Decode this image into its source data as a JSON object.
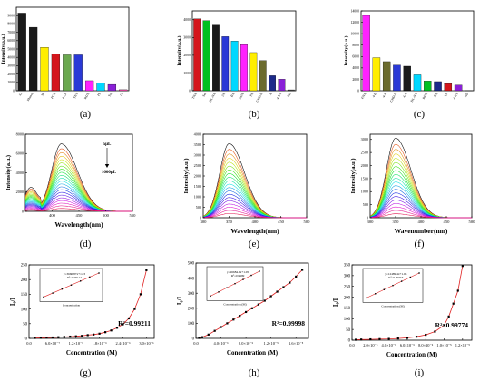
{
  "chart_data": [
    {
      "panel": "a",
      "type": "bar",
      "categories": [
        "Al",
        "Phenol",
        "3F",
        "PCA",
        "4-CP",
        "TNT",
        "RDX",
        "Ph",
        "Tol",
        "Cl"
      ],
      "values": [
        9300,
        7600,
        5200,
        4400,
        4300,
        4300,
        1200,
        950,
        750,
        120
      ],
      "colors": [
        "#1a1a1a",
        "#1a1a1a",
        "#ffee00",
        "#d4161c",
        "#6aa84f",
        "#2a39d6",
        "#ff22ff",
        "#00d8ff",
        "#8a20d8",
        "#ff4fb3"
      ],
      "ylabel": "Intensity(a.u.)",
      "ylim": [
        0,
        10000
      ],
      "ticks": [
        "0",
        "1000",
        "2000",
        "3000",
        "4000",
        "5000",
        "6000",
        "7000",
        "8000",
        "9000"
      ]
    },
    {
      "panel": "b",
      "type": "bar",
      "categories": [
        "TNA",
        "Ser",
        "DL-NA",
        "2A",
        "BA",
        "RDX",
        "PA",
        "CHD-N",
        "A",
        "4-NT",
        "NB"
      ],
      "values": [
        4050,
        3950,
        3700,
        3050,
        2800,
        2600,
        2150,
        1700,
        850,
        650,
        50
      ],
      "colors": [
        "#d4161c",
        "#00c020",
        "#1a1a1a",
        "#2a39d6",
        "#00d8ff",
        "#ff22ff",
        "#ffee00",
        "#6b6b2e",
        "#1c2a8a",
        "#8a20d8",
        "#4a4a4a"
      ],
      "ylabel": "Intensity(a.u.)",
      "ylim": [
        0,
        4500
      ],
      "ticks": [
        "0",
        "1000",
        "2000",
        "3000",
        "4000"
      ]
    },
    {
      "panel": "c",
      "type": "bar",
      "categories": [
        "ENA",
        "4-B",
        "4-A",
        "CHD-N",
        "4-A",
        "DL-NA",
        "RDX",
        "BA",
        "TP",
        "4-NT",
        "NB"
      ],
      "values": [
        13200,
        5800,
        5100,
        4500,
        4300,
        2800,
        1700,
        1600,
        1250,
        1000,
        50
      ],
      "colors": [
        "#ff22ff",
        "#ffee00",
        "#6b6b2e",
        "#2a39d6",
        "#1a1a1a",
        "#00d8ff",
        "#00c020",
        "#1c2a8a",
        "#d4161c",
        "#8a20d8",
        "#4a4a4a"
      ],
      "ylabel": "Intensity(a.u.)",
      "ylim": [
        0,
        14000
      ],
      "ticks": [
        "0",
        "2000",
        "4000",
        "6000",
        "8000",
        "10000",
        "12000",
        "14000"
      ]
    },
    {
      "panel": "d",
      "type": "line",
      "xlabel": "Wavelength(nm)",
      "ylabel": "Intensity(a.u.)",
      "xlim": [
        350,
        550
      ],
      "ylim": [
        0,
        8000
      ],
      "xticks": [
        "400",
        "450",
        "500",
        "550"
      ],
      "yticks": [
        "0",
        "2000",
        "4000",
        "6000",
        "8000"
      ],
      "peak_x": 417,
      "curve_count": 22,
      "peak_max": 7000,
      "peak_min": 300,
      "annotations": [
        "5μL",
        "1600μL"
      ]
    },
    {
      "panel": "e",
      "type": "line",
      "xlabel": "Wavelength(nm)",
      "ylabel": "Intensity(a.u.)",
      "xlim": [
        300,
        500
      ],
      "ylim": [
        0,
        4000
      ],
      "xticks": [
        "300",
        "350",
        "400",
        "450",
        "500"
      ],
      "yticks": [
        "0",
        "500",
        "1000",
        "1500",
        "2000",
        "2500",
        "3000",
        "3500",
        "4000"
      ],
      "peak_x": 350,
      "curve_count": 20,
      "peak_max": 3550,
      "peak_min": 200
    },
    {
      "panel": "f",
      "type": "line",
      "xlabel": "Wavenumber(nm)",
      "ylabel": "Intensity(a.u.)",
      "xlim": [
        300,
        500
      ],
      "ylim": [
        0,
        3200
      ],
      "xticks": [
        "300",
        "350",
        "400",
        "450",
        "500"
      ],
      "yticks": [
        "0",
        "500",
        "1000",
        "1500",
        "2000",
        "2500",
        "3000"
      ],
      "peak_x": 350,
      "curve_count": 20,
      "peak_max": 3050,
      "peak_min": 150
    },
    {
      "panel": "g",
      "type": "scatter",
      "xlabel": "Concentration (M)",
      "ylabel": "I₀/I",
      "xlim": [
        0,
        3.2e-06
      ],
      "ylim": [
        0,
        250
      ],
      "xticks": [
        "0.0",
        "6.0×10⁻⁷",
        "1.2×10⁻⁶",
        "1.8×10⁻⁶",
        "2.4×10⁻⁶",
        "3.0×10⁻⁶"
      ],
      "yticks": [
        "0",
        "50",
        "100",
        "150",
        "200",
        "250"
      ],
      "x": [
        1.5e-07,
        3e-07,
        4.5e-07,
        6e-07,
        7.5e-07,
        9e-07,
        1.05e-06,
        1.2e-06,
        1.35e-06,
        1.5e-06,
        1.65e-06,
        1.8e-06,
        1.95e-06,
        2.1e-06,
        2.25e-06,
        2.4e-06,
        2.55e-06,
        2.7e-06,
        2.85e-06,
        3e-06
      ],
      "y": [
        1.5,
        2,
        2.5,
        3,
        4,
        5,
        6,
        7,
        8.5,
        11,
        13,
        16,
        21,
        27,
        36,
        48,
        68,
        100,
        150,
        232
      ],
      "r2": "R²=0.99211",
      "inset": {
        "equation": "y=3660.87x+1.03",
        "r2": "R²=0.99112",
        "xlabel": "Concentration",
        "ylabel": "I₀/I",
        "xticks": [
          "2.0×10⁻⁸",
          "4.0×10⁻⁸",
          "6.0×10⁻⁸",
          "8.0×10⁻⁸",
          "1.0×10⁻⁷"
        ]
      }
    },
    {
      "panel": "h",
      "type": "scatter",
      "xlabel": "Concentration (M)",
      "ylabel": "I₀/I",
      "xlim": [
        0,
        1.8e-05
      ],
      "ylim": [
        0,
        500
      ],
      "xticks": [
        "0.0",
        "4.0×10⁻⁶",
        "8.0×10⁻⁶",
        "1.2×10⁻⁵",
        "1.6×10⁻⁵"
      ],
      "yticks": [
        "0",
        "100",
        "200",
        "300",
        "400",
        "500"
      ],
      "x": [
        5e-07,
        1e-06,
        2e-06,
        3e-06,
        4e-06,
        5e-06,
        6e-06,
        7e-06,
        8e-06,
        9e-06,
        1e-05,
        1.1e-05,
        1.2e-05,
        1.3e-05,
        1.4e-05,
        1.5e-05,
        1.6e-05,
        1.7e-05
      ],
      "y": [
        3,
        8,
        25,
        50,
        75,
        100,
        125,
        150,
        175,
        200,
        225,
        250,
        280,
        310,
        340,
        370,
        410,
        455
      ],
      "r2": "R²=0.99998",
      "inset": {
        "equation": "y=26684.9x+1.05",
        "r2": "R²=0.9999",
        "xlabel": "Concentration (M)",
        "ylabel": ""
      }
    },
    {
      "panel": "i",
      "type": "scatter",
      "xlabel": "Concentration (M)",
      "ylabel": "I₀/I",
      "xlim": [
        0,
        1.3e-05
      ],
      "ylim": [
        0,
        350
      ],
      "xticks": [
        "0.0",
        "2.0×10⁻⁶",
        "4.0×10⁻⁶",
        "6.0×10⁻⁶",
        "8.0×10⁻⁶",
        "1.0×10⁻⁵",
        "1.2×10⁻⁵"
      ],
      "yticks": [
        "0",
        "50",
        "100",
        "150",
        "200",
        "250",
        "300",
        "350"
      ],
      "x": [
        4e-07,
        1e-06,
        2e-06,
        3e-06,
        4e-06,
        5e-06,
        6e-06,
        7e-06,
        8e-06,
        9e-06,
        1e-05,
        1.05e-05,
        1.1e-05,
        1.15e-05,
        1.2e-05
      ],
      "y": [
        2,
        3,
        4,
        5,
        6,
        8,
        11,
        16,
        25,
        40,
        70,
        110,
        170,
        230,
        345
      ],
      "r2": "R²=0.99774",
      "inset": {
        "equation": "y=12489.4x+1.06",
        "r2": "R²=0.99755",
        "xlabel": "Concentration (M)",
        "ylabel": "I₀/I",
        "xticks": [
          "1.0×10⁻⁸",
          "2.0×10⁻⁸",
          "3.0×10⁻⁸",
          "4.0×10⁻⁸",
          "5.0×10⁻⁸"
        ]
      }
    }
  ],
  "labels": [
    "(a)",
    "(b)",
    "(c)",
    "(d)",
    "(e)",
    "(f)",
    "(g)",
    "(h)",
    "(i)"
  ]
}
